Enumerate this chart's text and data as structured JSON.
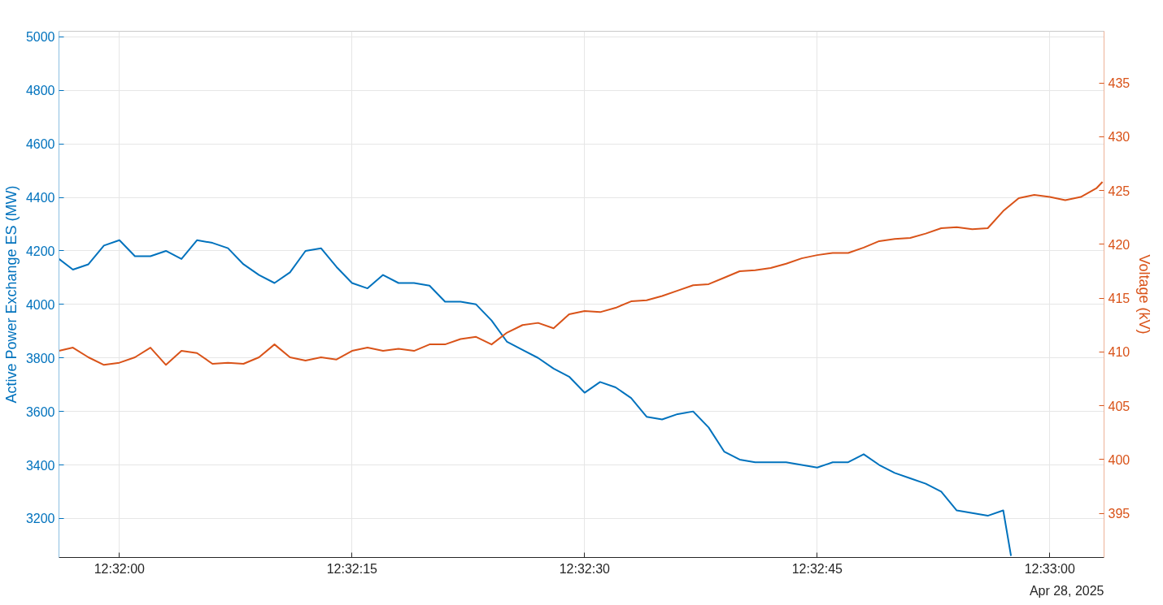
{
  "chart_data": {
    "type": "line",
    "ylabel": "Active Power Exchange ES (MW)",
    "y2label": "Voltage (kV)",
    "annotations": [
      "Apr 28, 2025"
    ],
    "xlim": [
      "2025-04-28T12:31:56.1",
      "2025-04-28T12:33:03.5"
    ],
    "xticks": [
      {
        "value": "2025-04-28T12:32:00",
        "label": "12:32:00"
      },
      {
        "value": "2025-04-28T12:32:15",
        "label": "12:32:15"
      },
      {
        "value": "2025-04-28T12:32:30",
        "label": "12:32:30"
      },
      {
        "value": "2025-04-28T12:32:45",
        "label": "12:32:45"
      },
      {
        "value": "2025-04-28T12:33:00",
        "label": "12:33:00"
      }
    ],
    "ylim": [
      3054,
      5021
    ],
    "yticks": [
      3200,
      3400,
      3600,
      3800,
      4000,
      4200,
      4400,
      4600,
      4800,
      5000
    ],
    "y2lim": [
      390.9,
      439.8
    ],
    "y2ticks": [
      395,
      400,
      405,
      410,
      415,
      420,
      425,
      430,
      435
    ],
    "grid": true,
    "marker": "none",
    "line_style": "solid",
    "series": [
      {
        "color": "#0072bd",
        "x": [
          "2025-04-28T12:31:56.1",
          "2025-04-28T12:31:57",
          "2025-04-28T12:31:58",
          "2025-04-28T12:31:59",
          "2025-04-28T12:32:00",
          "2025-04-28T12:32:01",
          "2025-04-28T12:32:02",
          "2025-04-28T12:32:03",
          "2025-04-28T12:32:04",
          "2025-04-28T12:32:05",
          "2025-04-28T12:32:06",
          "2025-04-28T12:32:07",
          "2025-04-28T12:32:08",
          "2025-04-28T12:32:09",
          "2025-04-28T12:32:10",
          "2025-04-28T12:32:11",
          "2025-04-28T12:32:12",
          "2025-04-28T12:32:13",
          "2025-04-28T12:32:14",
          "2025-04-28T12:32:15",
          "2025-04-28T12:32:16",
          "2025-04-28T12:32:17",
          "2025-04-28T12:32:18",
          "2025-04-28T12:32:19",
          "2025-04-28T12:32:20",
          "2025-04-28T12:32:21",
          "2025-04-28T12:32:22",
          "2025-04-28T12:32:23",
          "2025-04-28T12:32:24",
          "2025-04-28T12:32:25",
          "2025-04-28T12:32:26",
          "2025-04-28T12:32:27",
          "2025-04-28T12:32:28",
          "2025-04-28T12:32:29",
          "2025-04-28T12:32:30",
          "2025-04-28T12:32:31",
          "2025-04-28T12:32:32",
          "2025-04-28T12:32:33",
          "2025-04-28T12:32:34",
          "2025-04-28T12:32:35",
          "2025-04-28T12:32:36",
          "2025-04-28T12:32:37",
          "2025-04-28T12:32:38",
          "2025-04-28T12:32:39",
          "2025-04-28T12:32:40",
          "2025-04-28T12:32:41",
          "2025-04-28T12:32:42",
          "2025-04-28T12:32:43",
          "2025-04-28T12:32:44",
          "2025-04-28T12:32:45",
          "2025-04-28T12:32:46",
          "2025-04-28T12:32:47",
          "2025-04-28T12:32:48",
          "2025-04-28T12:32:49",
          "2025-04-28T12:32:50",
          "2025-04-28T12:32:51",
          "2025-04-28T12:32:52",
          "2025-04-28T12:32:53",
          "2025-04-28T12:32:54",
          "2025-04-28T12:32:55",
          "2025-04-28T12:32:56",
          "2025-04-28T12:32:57",
          "2025-04-28T12:32:57.5"
        ],
        "values": [
          4170,
          4130,
          4150,
          4220,
          4240,
          4180,
          4180,
          4200,
          4170,
          4240,
          4230,
          4210,
          4150,
          4110,
          4080,
          4120,
          4200,
          4210,
          4140,
          4080,
          4060,
          4110,
          4080,
          4080,
          4070,
          4010,
          4010,
          4000,
          3940,
          3860,
          3830,
          3800,
          3760,
          3730,
          3670,
          3710,
          3690,
          3650,
          3580,
          3570,
          3590,
          3600,
          3540,
          3450,
          3420,
          3410,
          3410,
          3410,
          3400,
          3390,
          3410,
          3410,
          3440,
          3400,
          3370,
          3350,
          3330,
          3300,
          3230,
          3220,
          3210,
          3230,
          3060
        ]
      },
      {
        "color": "#d95319",
        "axis": "y2",
        "x": [
          "2025-04-28T12:31:56.1",
          "2025-04-28T12:31:57",
          "2025-04-28T12:31:58",
          "2025-04-28T12:31:59",
          "2025-04-28T12:32:00",
          "2025-04-28T12:32:01",
          "2025-04-28T12:32:02",
          "2025-04-28T12:32:03",
          "2025-04-28T12:32:04",
          "2025-04-28T12:32:05",
          "2025-04-28T12:32:06",
          "2025-04-28T12:32:07",
          "2025-04-28T12:32:08",
          "2025-04-28T12:32:09",
          "2025-04-28T12:32:10",
          "2025-04-28T12:32:11",
          "2025-04-28T12:32:12",
          "2025-04-28T12:32:13",
          "2025-04-28T12:32:14",
          "2025-04-28T12:32:15",
          "2025-04-28T12:32:16",
          "2025-04-28T12:32:17",
          "2025-04-28T12:32:18",
          "2025-04-28T12:32:19",
          "2025-04-28T12:32:20",
          "2025-04-28T12:32:21",
          "2025-04-28T12:32:22",
          "2025-04-28T12:32:23",
          "2025-04-28T12:32:24",
          "2025-04-28T12:32:25",
          "2025-04-28T12:32:26",
          "2025-04-28T12:32:27",
          "2025-04-28T12:32:28",
          "2025-04-28T12:32:29",
          "2025-04-28T12:32:30",
          "2025-04-28T12:32:31",
          "2025-04-28T12:32:32",
          "2025-04-28T12:32:33",
          "2025-04-28T12:32:34",
          "2025-04-28T12:32:35",
          "2025-04-28T12:32:36",
          "2025-04-28T12:32:37",
          "2025-04-28T12:32:38",
          "2025-04-28T12:32:39",
          "2025-04-28T12:32:40",
          "2025-04-28T12:32:41",
          "2025-04-28T12:32:42",
          "2025-04-28T12:32:43",
          "2025-04-28T12:32:44",
          "2025-04-28T12:32:45",
          "2025-04-28T12:32:46",
          "2025-04-28T12:32:47",
          "2025-04-28T12:32:48",
          "2025-04-28T12:32:49",
          "2025-04-28T12:32:50",
          "2025-04-28T12:32:51",
          "2025-04-28T12:32:52",
          "2025-04-28T12:32:53",
          "2025-04-28T12:32:54",
          "2025-04-28T12:32:55",
          "2025-04-28T12:32:56",
          "2025-04-28T12:32:57",
          "2025-04-28T12:32:58",
          "2025-04-28T12:32:59",
          "2025-04-28T12:33:00",
          "2025-04-28T12:33:01",
          "2025-04-28T12:33:02",
          "2025-04-28T12:33:03",
          "2025-04-28T12:33:03.4"
        ],
        "values": [
          410.1,
          410.4,
          409.5,
          408.8,
          409.0,
          409.5,
          410.4,
          408.8,
          410.1,
          409.9,
          408.9,
          409.0,
          408.9,
          409.5,
          410.7,
          409.5,
          409.2,
          409.5,
          409.3,
          410.1,
          410.4,
          410.1,
          410.3,
          410.1,
          410.7,
          410.7,
          411.2,
          411.4,
          410.7,
          411.8,
          412.5,
          412.7,
          412.2,
          413.5,
          413.8,
          413.7,
          414.1,
          414.7,
          414.8,
          415.2,
          415.7,
          416.2,
          416.3,
          416.9,
          417.5,
          417.6,
          417.8,
          418.2,
          418.7,
          419.0,
          419.2,
          419.2,
          419.7,
          420.3,
          420.5,
          420.6,
          421.0,
          421.5,
          421.6,
          421.4,
          421.5,
          423.1,
          424.3,
          424.6,
          424.4,
          424.1,
          424.4,
          425.2,
          425.8
        ]
      }
    ]
  }
}
